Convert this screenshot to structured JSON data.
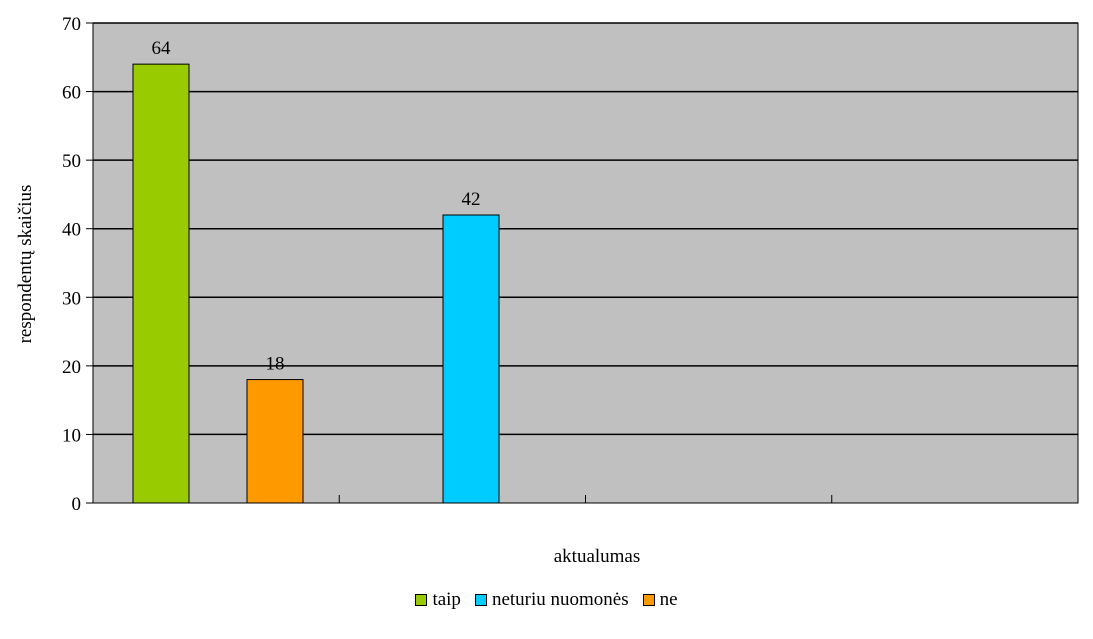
{
  "chart_data": {
    "type": "bar",
    "xlabel": "aktualumas",
    "ylabel": "respondentų skaičius",
    "ylim": [
      0,
      70
    ],
    "yticks": [
      0,
      10,
      20,
      30,
      40,
      50,
      60,
      70
    ],
    "grid": true,
    "legend_position": "bottom",
    "plot_background": "#c0c0c0",
    "bars": [
      {
        "series": "taip",
        "value": 64,
        "label": "64",
        "group": 0,
        "slot": 0
      },
      {
        "series": "ne",
        "value": 18,
        "label": "18",
        "group": 0,
        "slot": 2
      },
      {
        "series": "neturiu nuomonės",
        "value": 42,
        "label": "42",
        "group": 1,
        "slot": 1
      }
    ],
    "series": [
      {
        "name": "taip",
        "color": "#99cc00"
      },
      {
        "name": "neturiu nuomonės",
        "color": "#00ccff"
      },
      {
        "name": "ne",
        "color": "#ff9900"
      }
    ]
  }
}
